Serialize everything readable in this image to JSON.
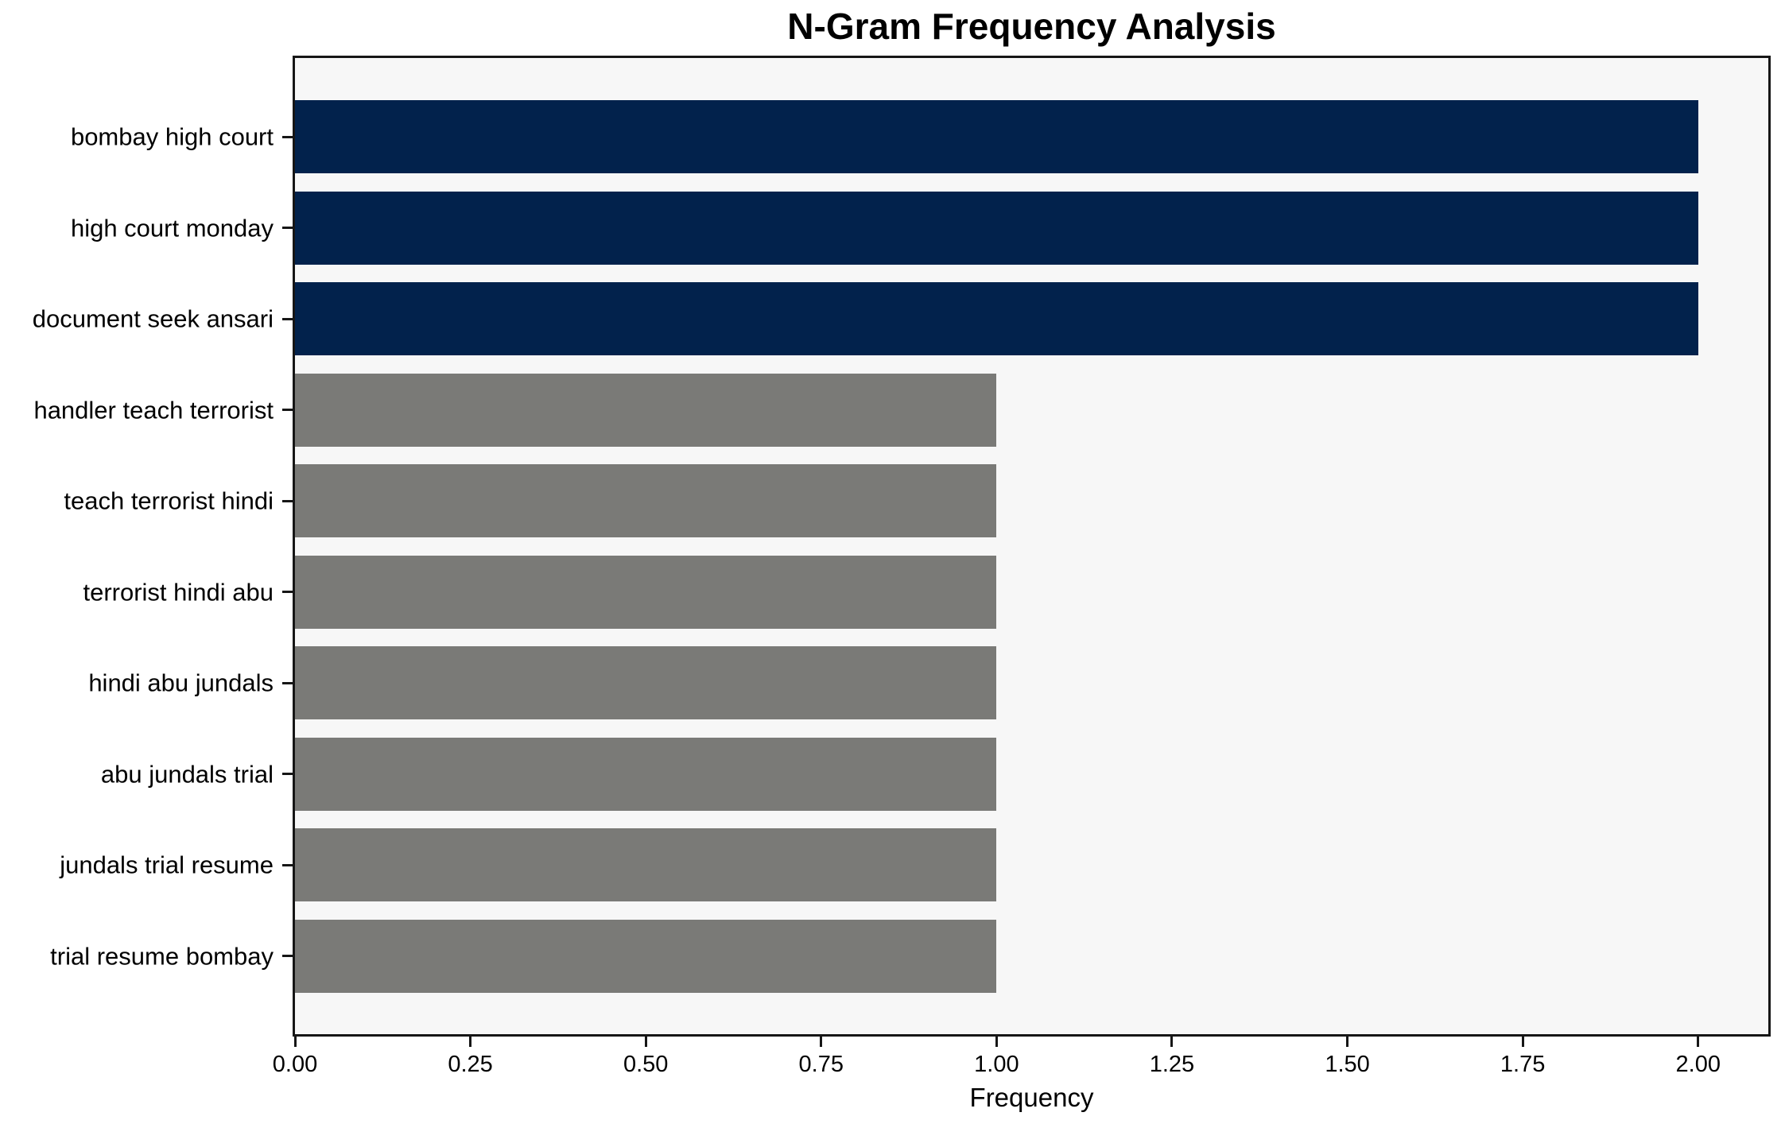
{
  "chart_data": {
    "type": "bar",
    "orientation": "horizontal",
    "title": "N-Gram Frequency Analysis",
    "xlabel": "Frequency",
    "ylabel": "",
    "categories": [
      "bombay high court",
      "high court monday",
      "document seek ansari",
      "handler teach terrorist",
      "teach terrorist hindi",
      "terrorist hindi abu",
      "hindi abu jundals",
      "abu jundals trial",
      "jundals trial resume",
      "trial resume bombay"
    ],
    "values": [
      2,
      2,
      2,
      1,
      1,
      1,
      1,
      1,
      1,
      1
    ],
    "bar_colors": [
      "#02224c",
      "#02224c",
      "#02224c",
      "#7a7a77",
      "#7a7a77",
      "#7a7a77",
      "#7a7a77",
      "#7a7a77",
      "#7a7a77",
      "#7a7a77"
    ],
    "xlim": [
      0,
      2.1
    ],
    "xticks": [
      0,
      0.25,
      0.5,
      0.75,
      1.0,
      1.25,
      1.5,
      1.75,
      2.0
    ],
    "xtick_labels": [
      "0.00",
      "0.25",
      "0.50",
      "0.75",
      "1.00",
      "1.25",
      "1.50",
      "1.75",
      "2.00"
    ],
    "grid": false,
    "legend": null,
    "colors": {
      "high_frequency_bar": "#02224c",
      "low_frequency_bar": "#7a7a77",
      "plot_background": "#f7f7f7",
      "figure_background": "#ffffff",
      "spine": "#161616",
      "text": "#000000"
    }
  }
}
